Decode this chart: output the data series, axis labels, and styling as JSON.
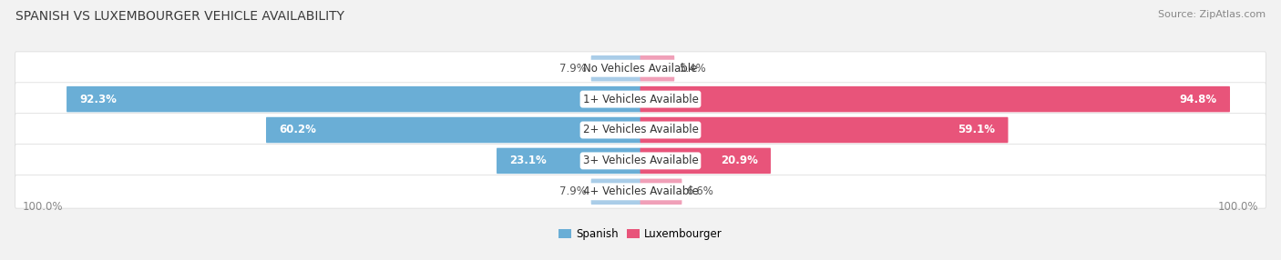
{
  "title": "SPANISH VS LUXEMBOURGER VEHICLE AVAILABILITY",
  "source": "Source: ZipAtlas.com",
  "categories": [
    "No Vehicles Available",
    "1+ Vehicles Available",
    "2+ Vehicles Available",
    "3+ Vehicles Available",
    "4+ Vehicles Available"
  ],
  "spanish_values": [
    7.9,
    92.3,
    60.2,
    23.1,
    7.9
  ],
  "luxembourger_values": [
    5.4,
    94.8,
    59.1,
    20.9,
    6.6
  ],
  "max_value": 100.0,
  "spanish_color_large": "#6aaed6",
  "spanish_color_small": "#aacde8",
  "luxembourger_color_large": "#e8547a",
  "luxembourger_color_small": "#f0a0b8",
  "spanish_label": "Spanish",
  "luxembourger_label": "Luxembourger",
  "bar_height": 0.72,
  "row_bg_color": "#ffffff",
  "outer_bg_color": "#f2f2f2",
  "row_gap_color": "#e0e0e0",
  "title_fontsize": 10,
  "source_fontsize": 8,
  "label_fontsize": 8.5,
  "value_fontsize": 8.5,
  "category_fontsize": 8.5,
  "large_threshold": 15.0,
  "bottom_label": "100.0%"
}
